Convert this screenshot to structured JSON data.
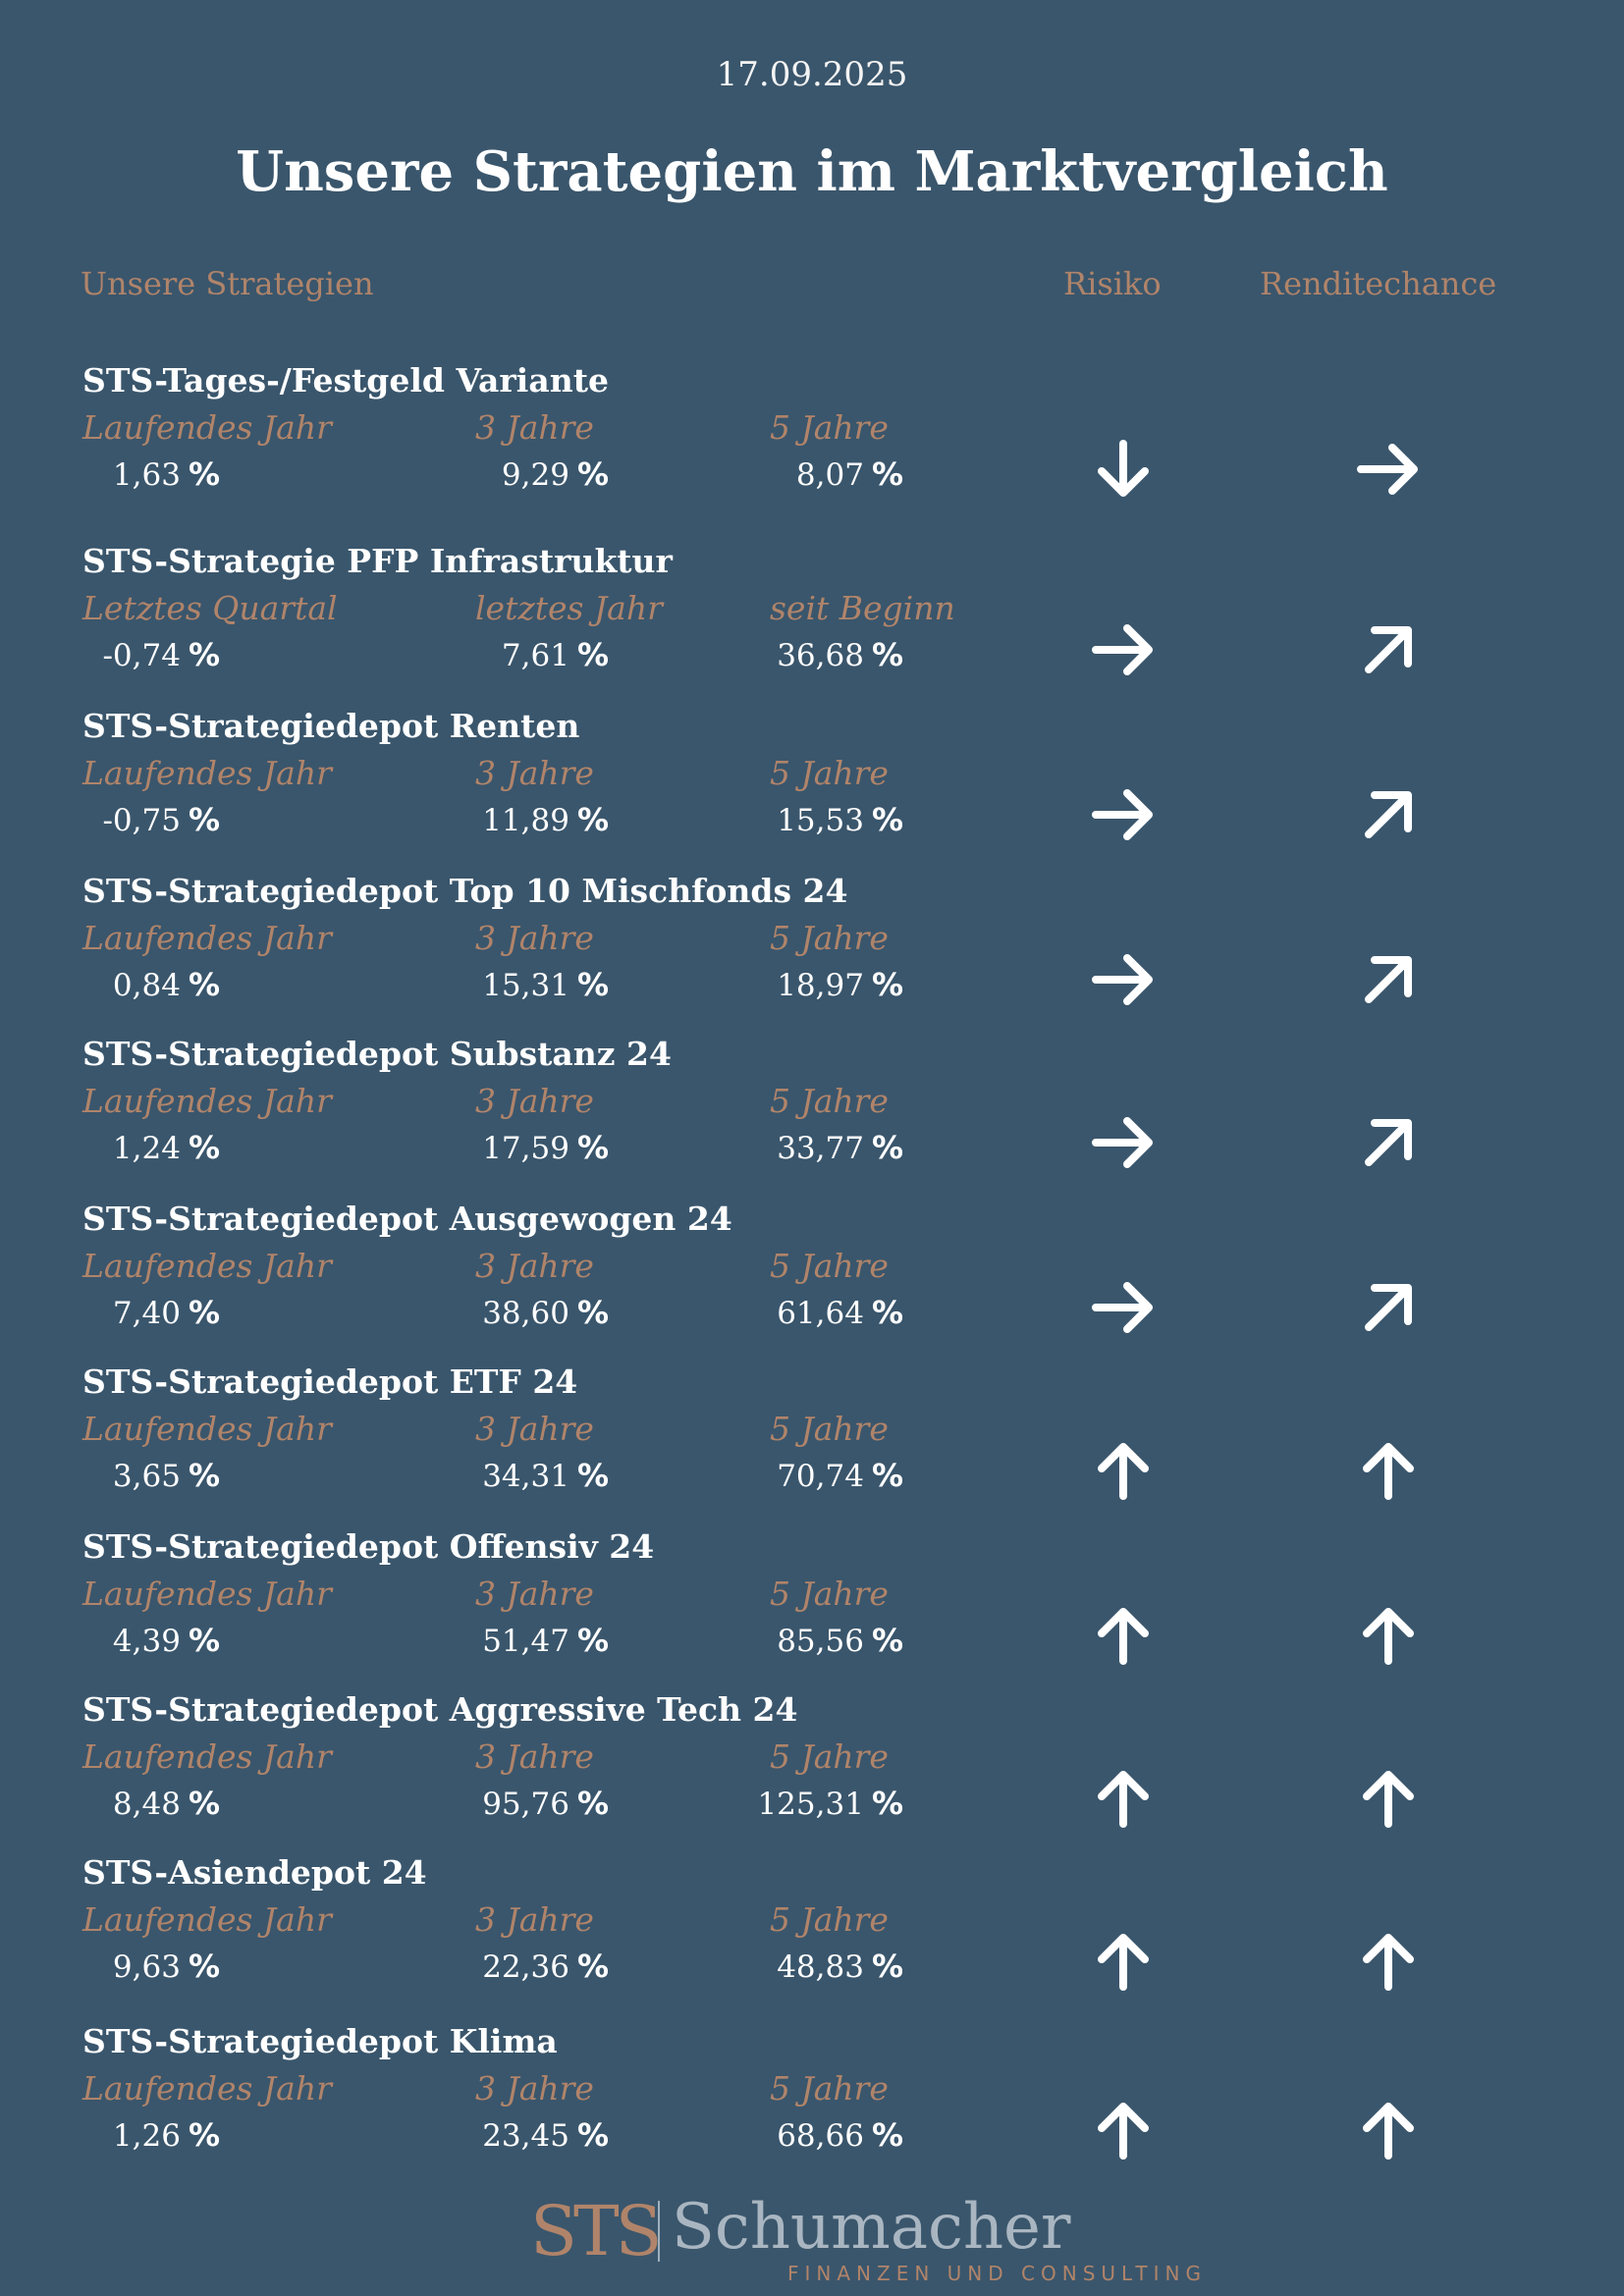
{
  "date": "17.09.2025",
  "title": "Unsere Strategien im Marktvergleich",
  "headers": {
    "strategies": "Unsere Strategien",
    "risk": "Risiko",
    "chance": "Renditechance"
  },
  "percent_sign": "%",
  "strategies": [
    {
      "name": "STS-Tages-/Festgeld Variante",
      "labels": [
        "Laufendes Jahr",
        "3 Jahre",
        "5 Jahre"
      ],
      "values": [
        "1,63",
        "9,29",
        "8,07"
      ],
      "risk": "arrow-down-icon",
      "chance": "arrow-right-icon"
    },
    {
      "name": "STS-Strategie PFP Infrastruktur",
      "labels": [
        "Letztes Quartal",
        "letztes Jahr",
        "seit Beginn"
      ],
      "values": [
        "-0,74",
        "7,61",
        "36,68"
      ],
      "risk": "arrow-right-icon",
      "chance": "arrow-up-right-icon"
    },
    {
      "name": "STS-Strategiedepot Renten",
      "labels": [
        "Laufendes Jahr",
        "3 Jahre",
        "5 Jahre"
      ],
      "values": [
        "-0,75",
        "11,89",
        "15,53"
      ],
      "risk": "arrow-right-icon",
      "chance": "arrow-up-right-icon"
    },
    {
      "name": "STS-Strategiedepot Top 10 Mischfonds 24",
      "labels": [
        "Laufendes Jahr",
        "3 Jahre",
        "5 Jahre"
      ],
      "values": [
        "0,84",
        "15,31",
        "18,97"
      ],
      "risk": "arrow-right-icon",
      "chance": "arrow-up-right-icon"
    },
    {
      "name": "STS-Strategiedepot Substanz 24",
      "labels": [
        "Laufendes Jahr",
        "3 Jahre",
        "5 Jahre"
      ],
      "values": [
        "1,24",
        "17,59",
        "33,77"
      ],
      "risk": "arrow-right-icon",
      "chance": "arrow-up-right-icon"
    },
    {
      "name": "STS-Strategiedepot Ausgewogen 24",
      "labels": [
        "Laufendes Jahr",
        "3 Jahre",
        "5 Jahre"
      ],
      "values": [
        "7,40",
        "38,60",
        "61,64"
      ],
      "risk": "arrow-right-icon",
      "chance": "arrow-up-right-icon"
    },
    {
      "name": "STS-Strategiedepot ETF 24",
      "labels": [
        "Laufendes Jahr",
        "3 Jahre",
        "5 Jahre"
      ],
      "values": [
        "3,65",
        "34,31",
        "70,74"
      ],
      "risk": "arrow-up-icon",
      "chance": "arrow-up-icon"
    },
    {
      "name": "STS-Strategiedepot Offensiv 24",
      "labels": [
        "Laufendes Jahr",
        "3 Jahre",
        "5 Jahre"
      ],
      "values": [
        "4,39",
        "51,47",
        "85,56"
      ],
      "risk": "arrow-up-icon",
      "chance": "arrow-up-icon"
    },
    {
      "name": "STS-Strategiedepot Aggressive Tech 24",
      "labels": [
        "Laufendes Jahr",
        "3 Jahre",
        "5 Jahre"
      ],
      "values": [
        "8,48",
        "95,76",
        "125,31"
      ],
      "risk": "arrow-up-icon",
      "chance": "arrow-up-icon"
    },
    {
      "name": "STS-Asiendepot 24",
      "labels": [
        "Laufendes Jahr",
        "3 Jahre",
        "5 Jahre"
      ],
      "values": [
        "9,63",
        "22,36",
        "48,83"
      ],
      "risk": "arrow-up-icon",
      "chance": "arrow-up-icon"
    },
    {
      "name": "STS-Strategiedepot Klima",
      "labels": [
        "Laufendes Jahr",
        "3 Jahre",
        "5 Jahre"
      ],
      "values": [
        "1,26",
        "23,45",
        "68,66"
      ],
      "risk": "arrow-up-icon",
      "chance": "arrow-up-icon"
    }
  ],
  "logo": {
    "mark": "STS",
    "name": "Schumacher",
    "tagline": "FINANZEN UND CONSULTING"
  },
  "colors": {
    "background": "#3a566c",
    "accent": "#b0846a",
    "text": "#ffffff"
  }
}
